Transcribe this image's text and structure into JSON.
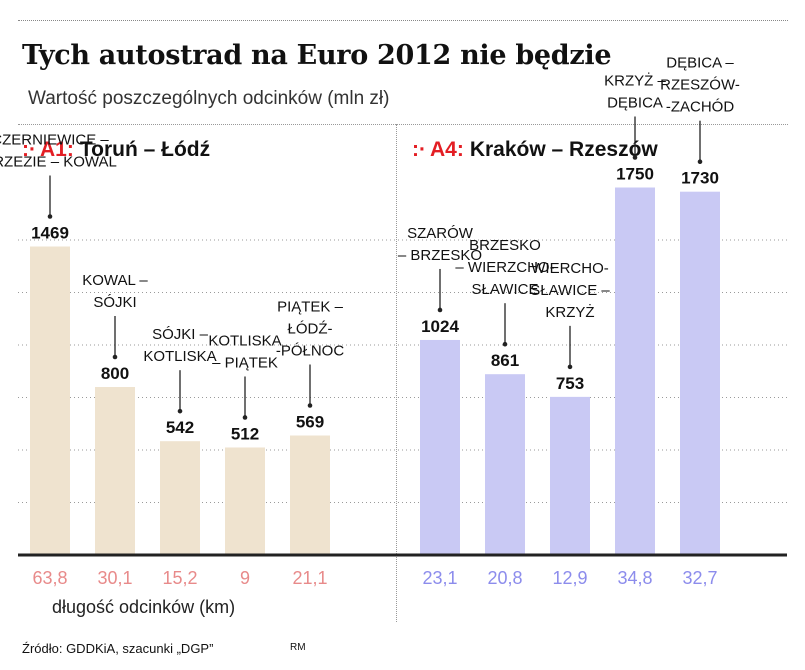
{
  "title": "Tych autostrad na Euro 2012 nie będzie",
  "subtitle": "Wartość poszczególnych odcinków (mln zł)",
  "length_label": "długość odcinków (km)",
  "source": "Źródło: GDDKiA, szacunki „DGP”",
  "credit": "RM",
  "colors": {
    "a1_bar": "#efe3cf",
    "a4_bar": "#c9c9f4",
    "a1_length": "#e88a8a",
    "a4_length": "#8c8cec",
    "accent": "#e31e24"
  },
  "chart_data": {
    "type": "bar",
    "ylim": [
      0,
      2000
    ],
    "grid": true,
    "series": [
      {
        "name": "A1",
        "section_marker": ":·",
        "section_road": "A1:",
        "section_route": "Toruń – Łódź",
        "bars": [
          {
            "label": [
              "CZERNIEWICE –",
              "BRZEZIE – KOWAL"
            ],
            "value": 1469,
            "length": "63,8"
          },
          {
            "label": [
              "KOWAL –",
              "SÓJKI"
            ],
            "value": 800,
            "length": "30,1"
          },
          {
            "label": [
              "SÓJKI –",
              "KOTLISKA"
            ],
            "value": 542,
            "length": "15,2"
          },
          {
            "label": [
              "KOTLISKA",
              "– PIĄTEK"
            ],
            "value": 512,
            "length": "9"
          },
          {
            "label": [
              "PIĄTEK –",
              "ŁÓDŹ-",
              "-PÓŁNOC"
            ],
            "value": 569,
            "length": "21,1"
          }
        ]
      },
      {
        "name": "A4",
        "section_marker": ":·",
        "section_road": "A4:",
        "section_route": "Kraków – Rzeszów",
        "bars": [
          {
            "label": [
              "SZARÓW",
              "– BRZESKO"
            ],
            "value": 1024,
            "length": "23,1"
          },
          {
            "label": [
              "BRZESKO",
              "– WIERZCHO-",
              "SŁAWICE"
            ],
            "value": 861,
            "length": "20,8"
          },
          {
            "label": [
              "WIERCHO-",
              "SŁAWICE –",
              "KRZYŻ"
            ],
            "value": 753,
            "length": "12,9"
          },
          {
            "label": [
              "KRZYŻ –",
              "DĘBICA"
            ],
            "value": 1750,
            "length": "34,8"
          },
          {
            "label": [
              "DĘBICA –",
              "RZESZÓW-",
              "-ZACHÓD"
            ],
            "value": 1730,
            "length": "32,7"
          }
        ]
      }
    ]
  }
}
